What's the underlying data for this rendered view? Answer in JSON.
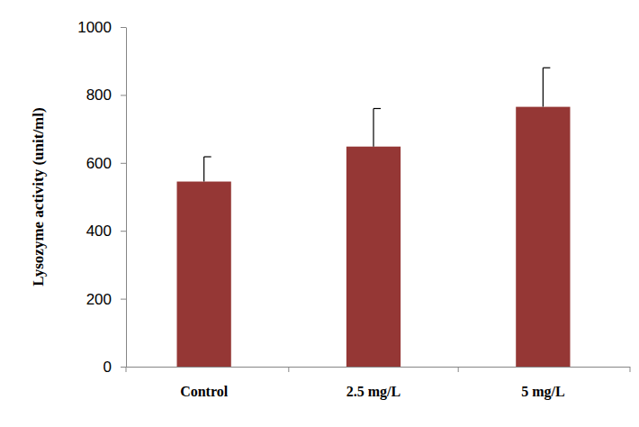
{
  "chart_data": {
    "type": "bar",
    "y_label": "Lysozyme activity (unit/ml)",
    "categories": [
      "Control",
      "2.5 mg/L",
      "5 mg/L"
    ],
    "values": [
      545,
      648,
      765
    ],
    "errors": [
      73,
      112,
      115
    ],
    "color": "#953735",
    "ylim": [
      0,
      1000
    ],
    "yticks": [
      0,
      200,
      400,
      600,
      800,
      1000
    ],
    "grid": false
  }
}
